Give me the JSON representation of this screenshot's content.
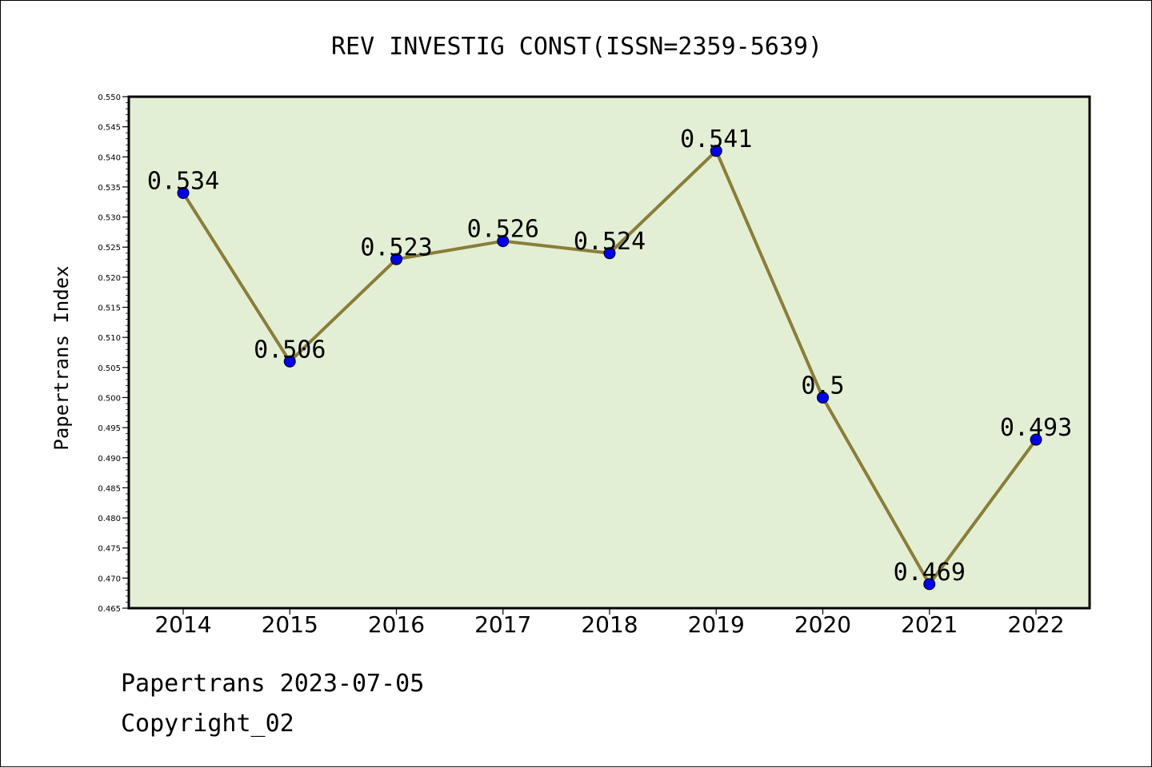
{
  "chart_data": {
    "type": "line",
    "title": "REV INVESTIG CONST(ISSN=2359-5639)",
    "xlabel": "",
    "ylabel": "Papertrans Index",
    "categories": [
      "2014",
      "2015",
      "2016",
      "2017",
      "2018",
      "2019",
      "2020",
      "2021",
      "2022"
    ],
    "values": [
      0.534,
      0.506,
      0.523,
      0.526,
      0.524,
      0.541,
      0.5,
      0.469,
      0.493
    ],
    "data_labels": [
      "0.534",
      "0.506",
      "0.523",
      "0.526",
      "0.524",
      "0.541",
      "0.5",
      "0.469",
      "0.493"
    ],
    "ylim": [
      0.465,
      0.55
    ],
    "yticks": [
      "0.465",
      "0.470",
      "0.475",
      "0.480",
      "0.485",
      "0.490",
      "0.495",
      "0.500",
      "0.505",
      "0.510",
      "0.515",
      "0.520",
      "0.525",
      "0.530",
      "0.535",
      "0.540",
      "0.545",
      "0.550"
    ],
    "grid": false,
    "colors": {
      "plot_background": "#e2efd4",
      "line": "#8b7d37",
      "marker": "#0000ee"
    }
  },
  "footer": {
    "line1": "Papertrans 2023-07-05",
    "line2": "Copyright_02"
  }
}
